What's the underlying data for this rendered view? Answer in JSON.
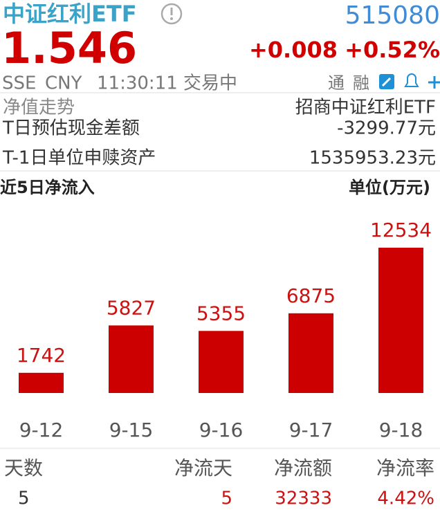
{
  "header": {
    "name": "中证红利ETF",
    "code": "515080",
    "price": "1.546",
    "change": "+0.008",
    "change_pct": "+0.52%",
    "status": [
      "SSE",
      "CNY",
      "11:30:11",
      "交易中"
    ],
    "tags": [
      "通",
      "融"
    ]
  },
  "rows": [
    {
      "label": "净值走势",
      "value": "招商中证红利ETF"
    },
    {
      "label": "T日预估现金差额",
      "value": "-3299.77元"
    },
    {
      "label": "T-1日单位申赎资产",
      "value": "1535953.23元"
    }
  ],
  "chart_data": {
    "type": "bar",
    "title": "近5日净流入",
    "unit": "单位(万元)",
    "categories": [
      "9-12",
      "9-15",
      "9-16",
      "9-17",
      "9-18"
    ],
    "values": [
      1742,
      5827,
      5355,
      6875,
      12534
    ],
    "color": "#cc0000"
  },
  "table": {
    "headers": [
      "天数",
      "净流天",
      "净流额",
      "净流率"
    ],
    "rows": [
      [
        "5",
        "5",
        "32333",
        "4.42%"
      ]
    ]
  }
}
